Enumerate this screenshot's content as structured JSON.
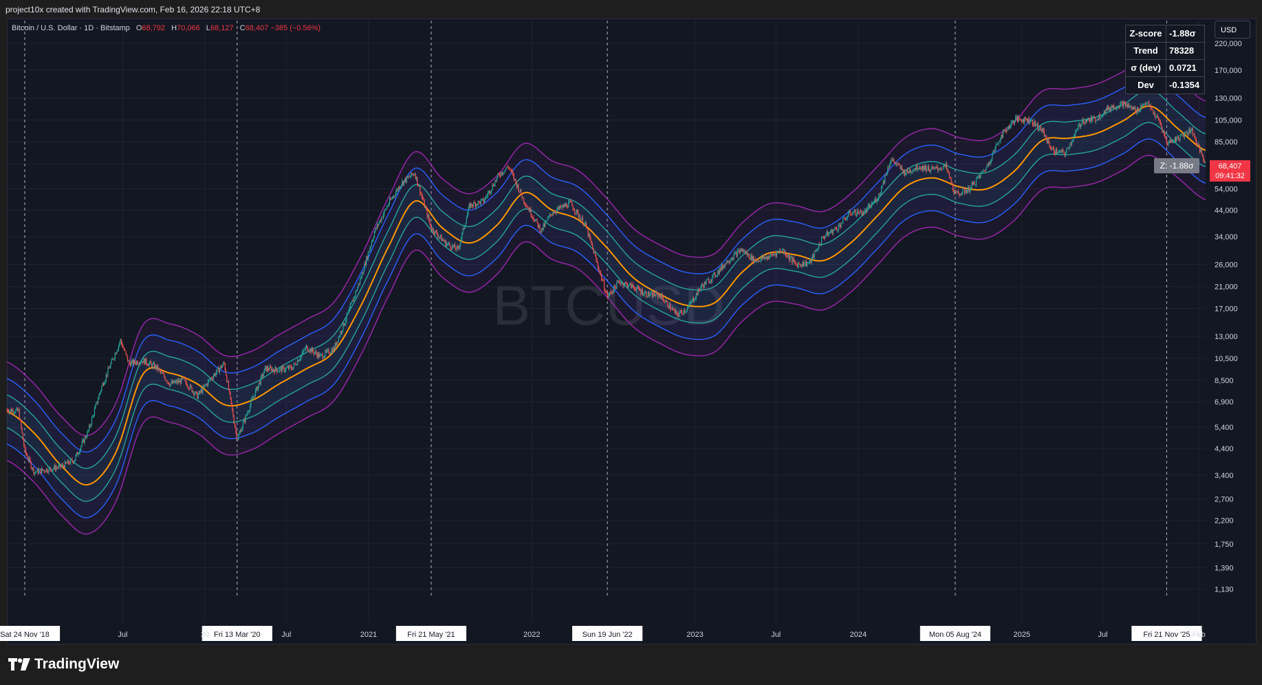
{
  "header": {
    "credit": "project10x created with TradingView.com, Feb 16, 2026 22:18 UTC+8"
  },
  "legend": {
    "symbol": "Bitcoin / U.S. Dollar · 1D · Bitstamp",
    "o_label": "O",
    "o": "68,792",
    "h_label": "H",
    "h": "70,066",
    "l_label": "L",
    "l": "68,127",
    "c_label": "C",
    "c": "68,407",
    "change": "−385 (−0.56%)"
  },
  "stats": {
    "rows": [
      {
        "k": "Z-score",
        "v": "-1.88σ"
      },
      {
        "k": "Trend",
        "v": "78328"
      },
      {
        "k": "σ (dev)",
        "v": "0.0721"
      },
      {
        "k": "Dev",
        "v": "-0.1354"
      }
    ]
  },
  "currency_button": "USD",
  "price_tag": {
    "price": "68,407",
    "countdown": "09:41:32"
  },
  "z_tag": "Z: -1.88σ",
  "watermark": "BTCUSD",
  "footer": {
    "brand": "TradingView"
  },
  "colors": {
    "background": "#131722",
    "grid": "#1f2330",
    "trend": "#ff9800",
    "band1": "#26a69a",
    "band2": "#2962ff",
    "band3": "#9c27b0",
    "up": "#26a69a",
    "down": "#ef5350",
    "price_tag": "#f23645"
  },
  "chart_data": {
    "type": "line",
    "scale": "log",
    "ylim": [
      1000,
      240000
    ],
    "xlim": [
      "2018-10-15",
      "2026-02-16"
    ],
    "y_ticks": [
      220000,
      170000,
      130000,
      105000,
      85000,
      68407,
      54000,
      44000,
      34000,
      26000,
      21000,
      17000,
      13000,
      10500,
      8500,
      6900,
      5400,
      4400,
      3400,
      2700,
      2200,
      1750,
      1390,
      1130
    ],
    "y_tick_labels": [
      "220,000",
      "170,000",
      "130,000",
      "105,000",
      "85,000",
      "",
      "54,000",
      "44,000",
      "34,000",
      "26,000",
      "21,000",
      "17,000",
      "13,000",
      "10,500",
      "8,500",
      "6,900",
      "5,400",
      "4,400",
      "3,400",
      "2,700",
      "2,200",
      "1,750",
      "1,390",
      "1,130"
    ],
    "x_ticks": [
      {
        "date": "2019-07-01",
        "label": "Jul"
      },
      {
        "date": "2020-01-01",
        "label": "20"
      },
      {
        "date": "2020-07-01",
        "label": "Jul"
      },
      {
        "date": "2021-01-01",
        "label": "2021"
      },
      {
        "date": "2022-01-01",
        "label": "2022"
      },
      {
        "date": "2023-01-01",
        "label": "2023"
      },
      {
        "date": "2023-07-01",
        "label": "Jul"
      },
      {
        "date": "2024-01-01",
        "label": "2024"
      },
      {
        "date": "2025-01-01",
        "label": "2025"
      },
      {
        "date": "2025-07-01",
        "label": "Jul"
      },
      {
        "date": "2026-02-01",
        "label": "Feb"
      }
    ],
    "markers": [
      {
        "date": "2018-11-24",
        "label": "Sat 24 Nov '18"
      },
      {
        "date": "2020-03-13",
        "label": "Fri 13 Mar '20"
      },
      {
        "date": "2021-05-21",
        "label": "Fri 21 May '21"
      },
      {
        "date": "2022-06-19",
        "label": "Sun 19 Jun '22"
      },
      {
        "date": "2024-08-05",
        "label": "Mon 05 Aug '24"
      },
      {
        "date": "2025-11-21",
        "label": "Fri 21 Nov '25"
      }
    ],
    "band_sigma": 0.0721,
    "band_multipliers": [
      1,
      2,
      3
    ],
    "trend": {
      "dates": [
        "2018-10-15",
        "2018-12-15",
        "2019-02-15",
        "2019-04-15",
        "2019-06-15",
        "2019-08-15",
        "2019-10-15",
        "2019-12-15",
        "2020-02-15",
        "2020-04-15",
        "2020-06-15",
        "2020-08-15",
        "2020-10-15",
        "2020-12-15",
        "2021-02-15",
        "2021-04-15",
        "2021-06-15",
        "2021-08-15",
        "2021-10-15",
        "2021-12-15",
        "2022-02-15",
        "2022-04-15",
        "2022-06-15",
        "2022-08-15",
        "2022-10-15",
        "2022-12-15",
        "2023-02-15",
        "2023-04-15",
        "2023-06-15",
        "2023-08-15",
        "2023-10-15",
        "2023-12-15",
        "2024-02-15",
        "2024-04-15",
        "2024-06-15",
        "2024-08-15",
        "2024-10-15",
        "2024-12-15",
        "2025-02-15",
        "2025-04-15",
        "2025-06-15",
        "2025-08-15",
        "2025-10-15",
        "2025-12-15",
        "2026-02-15"
      ],
      "values": [
        6300,
        5100,
        3700,
        3100,
        4200,
        9000,
        9100,
        8200,
        6700,
        7000,
        8200,
        9500,
        11200,
        17500,
        31000,
        48000,
        37000,
        32000,
        38000,
        52000,
        44000,
        40000,
        31000,
        23000,
        19500,
        17500,
        18000,
        24000,
        29000,
        28500,
        27000,
        32000,
        42000,
        55000,
        60000,
        55000,
        54000,
        64000,
        86000,
        88000,
        92000,
        104000,
        120000,
        97000,
        78328
      ]
    },
    "price": {
      "dates": [
        "2018-10-15",
        "2018-11-10",
        "2018-11-24",
        "2018-12-15",
        "2019-01-15",
        "2019-02-15",
        "2019-03-15",
        "2019-04-15",
        "2019-05-15",
        "2019-06-26",
        "2019-07-15",
        "2019-08-15",
        "2019-09-15",
        "2019-10-15",
        "2019-11-15",
        "2019-12-15",
        "2020-01-15",
        "2020-02-13",
        "2020-03-13",
        "2020-04-15",
        "2020-05-15",
        "2020-06-15",
        "2020-07-15",
        "2020-08-15",
        "2020-09-15",
        "2020-10-15",
        "2020-11-15",
        "2020-12-15",
        "2021-01-15",
        "2021-02-15",
        "2021-03-15",
        "2021-04-14",
        "2021-05-21",
        "2021-06-22",
        "2021-07-20",
        "2021-08-15",
        "2021-09-15",
        "2021-10-20",
        "2021-11-10",
        "2021-12-15",
        "2022-01-22",
        "2022-02-15",
        "2022-03-28",
        "2022-05-01",
        "2022-06-19",
        "2022-07-15",
        "2022-08-15",
        "2022-09-15",
        "2022-10-15",
        "2022-11-21",
        "2022-12-15",
        "2023-01-15",
        "2023-02-15",
        "2023-03-15",
        "2023-04-15",
        "2023-05-15",
        "2023-06-15",
        "2023-07-15",
        "2023-08-15",
        "2023-09-15",
        "2023-10-15",
        "2023-11-15",
        "2023-12-15",
        "2024-01-15",
        "2024-02-15",
        "2024-03-14",
        "2024-04-15",
        "2024-05-15",
        "2024-06-15",
        "2024-07-15",
        "2024-08-05",
        "2024-09-06",
        "2024-10-15",
        "2024-11-15",
        "2024-12-17",
        "2025-01-20",
        "2025-02-15",
        "2025-03-11",
        "2025-04-08",
        "2025-05-15",
        "2025-06-15",
        "2025-07-15",
        "2025-08-14",
        "2025-09-15",
        "2025-10-06",
        "2025-11-05",
        "2025-11-21",
        "2025-12-15",
        "2026-01-15",
        "2026-02-16"
      ],
      "values": [
        6400,
        6300,
        4300,
        3500,
        3600,
        3700,
        3950,
        5200,
        8000,
        12500,
        10000,
        10300,
        9600,
        8200,
        8500,
        7300,
        8700,
        10000,
        4800,
        7000,
        9500,
        9400,
        9600,
        11700,
        10700,
        11500,
        16000,
        23000,
        36000,
        47000,
        57000,
        63000,
        37000,
        32000,
        30000,
        46000,
        48000,
        62000,
        67000,
        48000,
        36000,
        43000,
        47000,
        38000,
        19000,
        22000,
        21000,
        19500,
        19300,
        16000,
        17000,
        21000,
        23500,
        27000,
        30000,
        27000,
        28000,
        30000,
        26000,
        26500,
        34000,
        37000,
        43000,
        43000,
        50000,
        72000,
        63000,
        67000,
        65000,
        67000,
        51000,
        54000,
        67000,
        90000,
        106000,
        105000,
        95000,
        78000,
        76000,
        104000,
        106000,
        118000,
        123000,
        115000,
        125000,
        103000,
        84000,
        88000,
        96000,
        68407
      ]
    }
  }
}
